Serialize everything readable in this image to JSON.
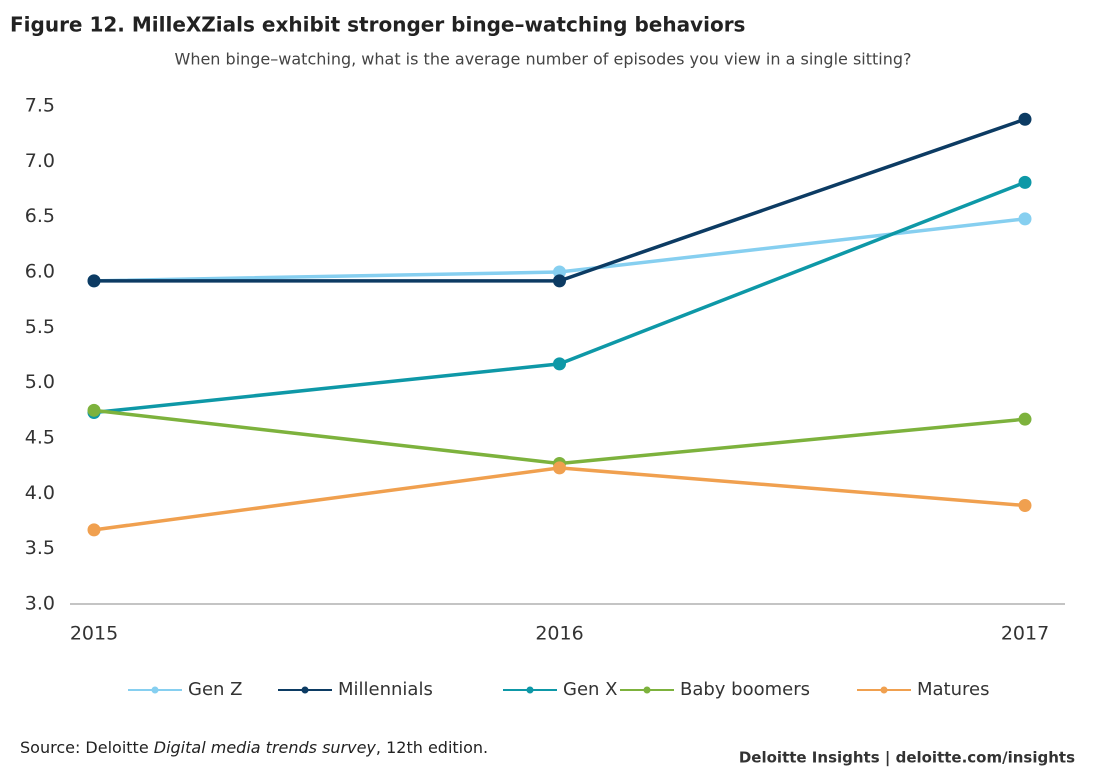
{
  "chart_data": {
    "type": "line",
    "title": "Figure 12. MilleXZials exhibit stronger binge–watching behaviors",
    "subtitle": "When binge–watching, what is the average number of episodes you view in a single sitting?",
    "categories": [
      "2015",
      "2016",
      "2017"
    ],
    "series": [
      {
        "name": "Gen Z",
        "color": "#86cff0",
        "values": [
          5.92,
          6.0,
          6.48
        ]
      },
      {
        "name": "Millennials",
        "color": "#0c3b63",
        "values": [
          5.92,
          5.92,
          7.38
        ]
      },
      {
        "name": "Gen X",
        "color": "#0e98a7",
        "values": [
          4.73,
          5.17,
          6.81
        ]
      },
      {
        "name": "Baby boomers",
        "color": "#7db23d",
        "values": [
          4.75,
          4.27,
          4.67
        ]
      },
      {
        "name": "Matures",
        "color": "#f0a04f",
        "values": [
          3.67,
          4.23,
          3.89
        ]
      }
    ],
    "ylim": [
      3.0,
      7.5
    ],
    "yticks": [
      {
        "value": 3.0,
        "label": "3.0"
      },
      {
        "value": 3.5,
        "label": "3.5"
      },
      {
        "value": 4.0,
        "label": "4.0"
      },
      {
        "value": 4.5,
        "label": "4.5"
      },
      {
        "value": 5.0,
        "label": "5.0"
      },
      {
        "value": 5.5,
        "label": "5.5"
      },
      {
        "value": 6.0,
        "label": "6.0"
      },
      {
        "value": 6.5,
        "label": "6.5"
      },
      {
        "value": 7.0,
        "label": "7.0"
      },
      {
        "value": 7.5,
        "label": "7.5"
      }
    ],
    "grid": false,
    "legend": "bottom",
    "source": {
      "prefix": "Source: Deloitte ",
      "italic": "Digital media trends survey",
      "suffix": ", 12th edition."
    },
    "footer": "Deloitte Insights | deloitte.com/insights"
  }
}
